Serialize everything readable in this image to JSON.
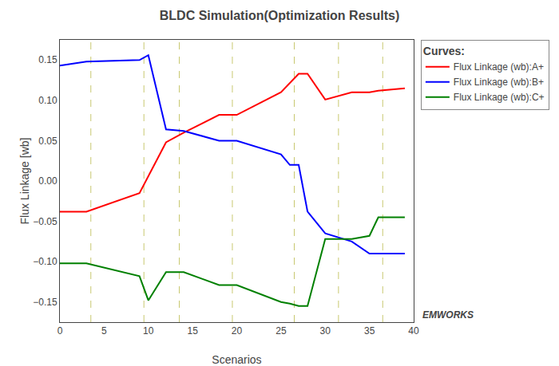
{
  "chart_data": {
    "type": "line",
    "title": "BLDC Simulation(Optimization Results)",
    "x_label": "Scenarios",
    "y_label": "Flux Linkage [wb]",
    "xlim": [
      0,
      40
    ],
    "ylim": [
      -0.175,
      0.175
    ],
    "xticks": [
      0,
      5,
      10,
      15,
      20,
      25,
      30,
      35,
      40
    ],
    "yticks": [
      {
        "value": -0.15,
        "label": "−0.15"
      },
      {
        "value": -0.1,
        "label": "−0.10"
      },
      {
        "value": -0.05,
        "label": "−0.05"
      },
      {
        "value": 0.0,
        "label": "0.00"
      },
      {
        "value": 0.05,
        "label": "0.05"
      },
      {
        "value": 0.1,
        "label": "0.10"
      },
      {
        "value": 0.15,
        "label": "0.15"
      }
    ],
    "grid": false,
    "legend": "upper right",
    "legend_title": "Curves:",
    "series": [
      {
        "name": "Flux Linkage (wb):A+",
        "color": "#ff0000",
        "x": [
          0,
          3,
          9,
          12,
          14,
          18,
          20,
          25,
          27,
          28,
          30,
          33,
          35,
          36,
          39
        ],
        "values": [
          -0.038,
          -0.038,
          -0.015,
          0.048,
          0.06,
          0.082,
          0.082,
          0.11,
          0.133,
          0.133,
          0.101,
          0.11,
          0.11,
          0.112,
          0.115
        ]
      },
      {
        "name": "Flux Linkage (wb):B+",
        "color": "#0000ff",
        "x": [
          0,
          3,
          9,
          10,
          12,
          14,
          18,
          20,
          25,
          26,
          27,
          28,
          30,
          33,
          35,
          36,
          39
        ],
        "values": [
          0.143,
          0.148,
          0.15,
          0.156,
          0.064,
          0.062,
          0.05,
          0.05,
          0.033,
          0.02,
          0.02,
          -0.038,
          -0.065,
          -0.075,
          -0.09,
          -0.09,
          -0.09
        ]
      },
      {
        "name": "Flux Linkage (wb):C+",
        "color": "#008000",
        "x": [
          0,
          3,
          9,
          10,
          12,
          14,
          18,
          20,
          25,
          26,
          27,
          28,
          30,
          33,
          35,
          36,
          39
        ],
        "values": [
          -0.102,
          -0.102,
          -0.118,
          -0.148,
          -0.113,
          -0.113,
          -0.129,
          -0.129,
          -0.15,
          -0.152,
          -0.155,
          -0.155,
          -0.072,
          -0.072,
          -0.068,
          -0.045,
          -0.045
        ]
      }
    ],
    "vlines": {
      "values": [
        3.5,
        9.5,
        13.5,
        19.5,
        26.5,
        31.5,
        36.5
      ],
      "color": "#c8c870",
      "line_style": "dashed"
    },
    "annotations": [
      {
        "text": "EMWORKS"
      }
    ]
  }
}
